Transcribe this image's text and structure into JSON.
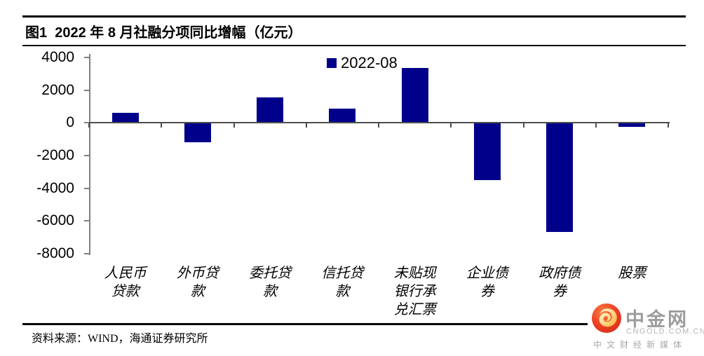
{
  "title": "图1  2022 年 8 月社融分项同比增幅（亿元）",
  "source": "资料来源：WIND，海通证券研究所",
  "logo": {
    "name": "中金网",
    "domain": "CNGOLD.COM.CN",
    "tagline": "中文财经新媒体"
  },
  "chart_data": {
    "type": "bar",
    "title": "图1 2022 年 8 月社融分项同比增幅（亿元）",
    "legend": "2022-08",
    "legend_position": "top-center",
    "unit": "亿元",
    "bar_color": "#00008B",
    "axis_color": "#808080",
    "zero_line_color": "#4d4d4d",
    "grid": false,
    "categories": [
      "人民币贷款",
      "外币贷款",
      "委托贷款",
      "信托贷款",
      "未贴现银行承兑汇票",
      "企业债券",
      "政府债券",
      "股票"
    ],
    "category_lines": [
      [
        "人民币",
        "贷款"
      ],
      [
        "外币贷",
        "款"
      ],
      [
        "委托贷",
        "款"
      ],
      [
        "信托贷",
        "款"
      ],
      [
        "未贴现",
        "银行承",
        "兑汇票"
      ],
      [
        "企业债",
        "券"
      ],
      [
        "政府债",
        "券"
      ],
      [
        "股票"
      ]
    ],
    "values": [
      631,
      -1173,
      1578,
      890,
      3358,
      -3501,
      -6693,
      -227
    ],
    "ylim": [
      -8000,
      4000
    ],
    "ytick_step": 2000,
    "yticks": [
      4000,
      2000,
      0,
      -2000,
      -4000,
      -6000,
      -8000
    ],
    "xlabel": "",
    "ylabel": ""
  }
}
